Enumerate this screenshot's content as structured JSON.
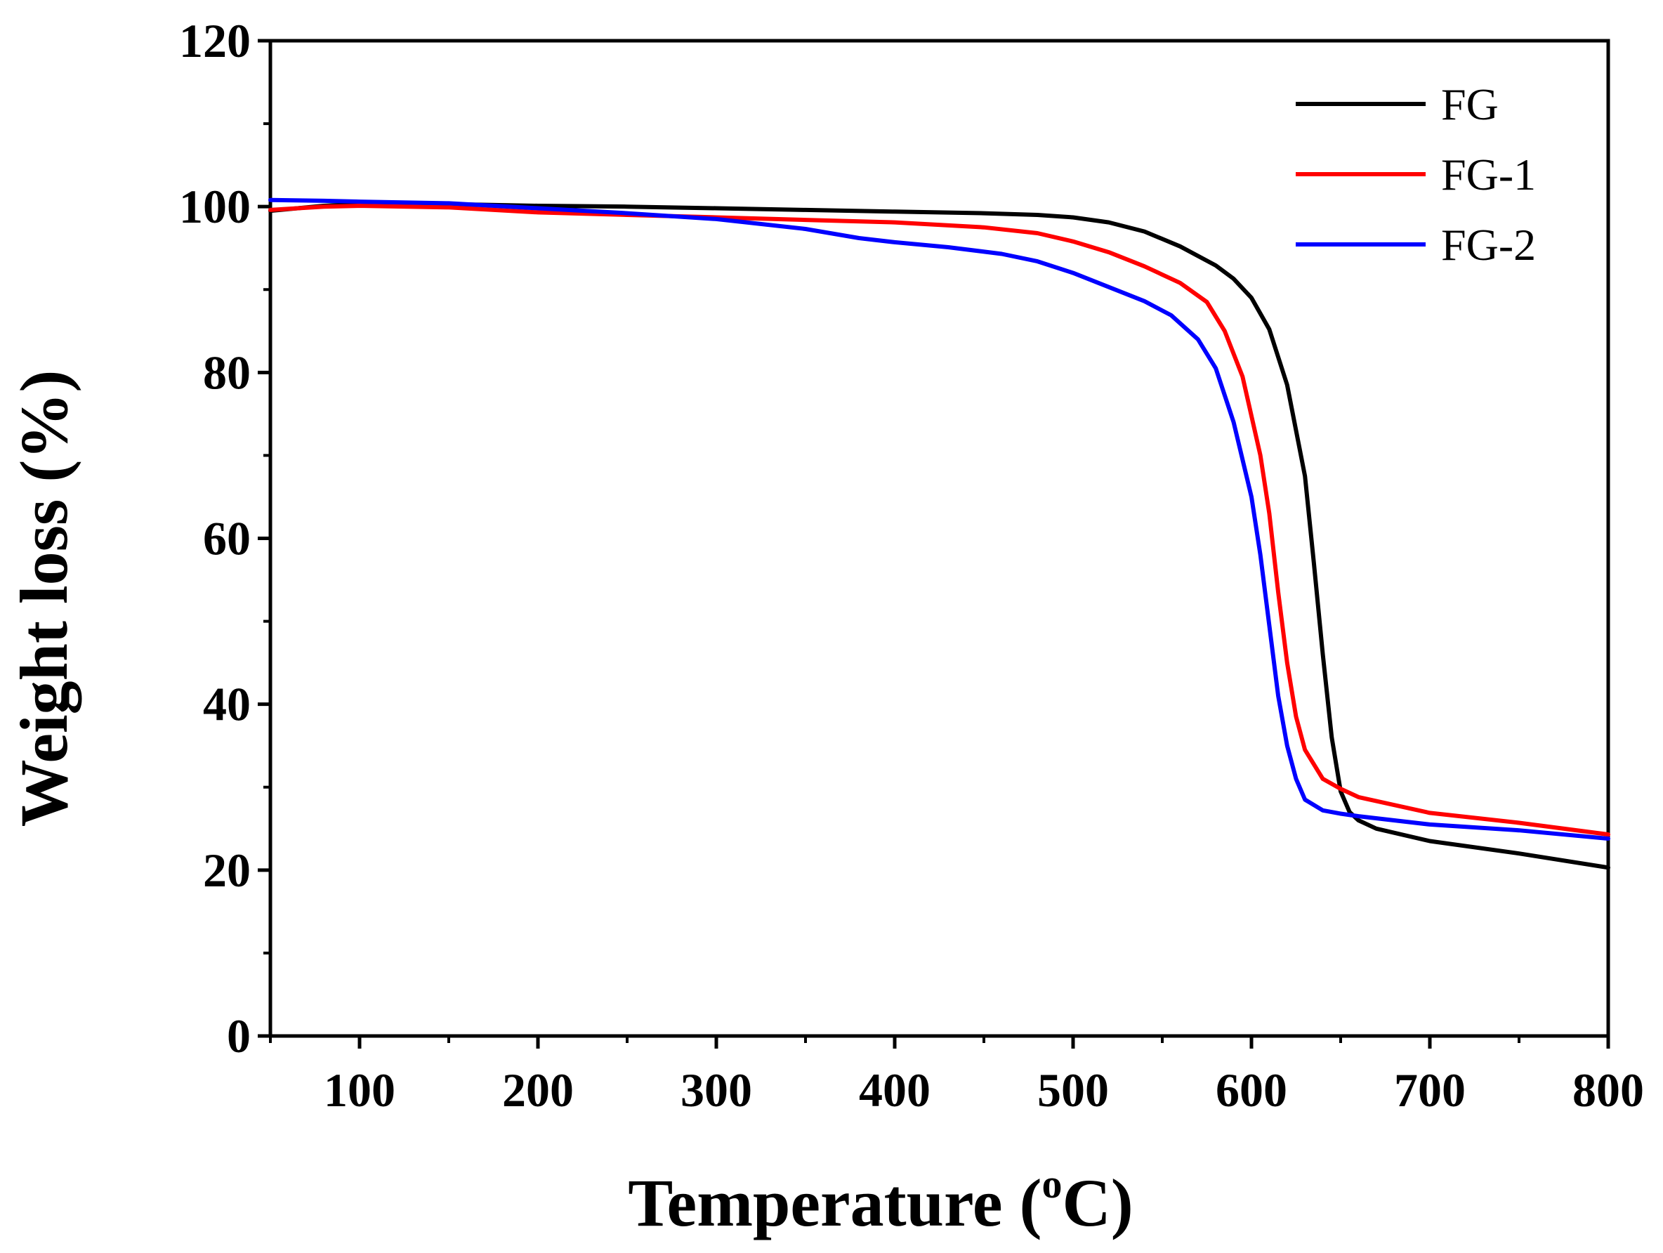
{
  "chart_data": {
    "type": "line",
    "title": "",
    "xlabel": {
      "main": "Temperature (",
      "sup": "o",
      "tail": "C)"
    },
    "ylabel": "Weight loss (%)",
    "xlim": [
      50,
      800
    ],
    "ylim": [
      0,
      120
    ],
    "xticks": [
      100,
      200,
      300,
      400,
      500,
      600,
      700,
      800
    ],
    "yticks": [
      0,
      20,
      40,
      60,
      80,
      100,
      120
    ],
    "xminor": [
      50,
      150,
      250,
      350,
      450,
      550,
      650,
      750
    ],
    "yminor": [
      10,
      30,
      50,
      70,
      90,
      110
    ],
    "legend_position": "top-right",
    "series": [
      {
        "name": "FG",
        "color": "#000000",
        "x": [
          50,
          80,
          100,
          150,
          200,
          250,
          300,
          350,
          400,
          450,
          480,
          500,
          520,
          540,
          560,
          580,
          590,
          600,
          610,
          620,
          630,
          635,
          640,
          645,
          650,
          655,
          660,
          670,
          700,
          750,
          800
        ],
        "y": [
          99.5,
          100.1,
          100.3,
          100.3,
          100.1,
          100.0,
          99.8,
          99.6,
          99.4,
          99.2,
          99.0,
          98.7,
          98.1,
          97.0,
          95.2,
          92.9,
          91.3,
          89.0,
          85.2,
          78.5,
          67.5,
          57.0,
          46.0,
          36.0,
          29.5,
          27.0,
          26.0,
          25.0,
          23.5,
          22.0,
          20.3
        ]
      },
      {
        "name": "FG-1",
        "color": "#ff0000",
        "x": [
          50,
          80,
          100,
          150,
          200,
          250,
          300,
          350,
          400,
          450,
          480,
          500,
          520,
          540,
          560,
          575,
          585,
          595,
          605,
          610,
          615,
          620,
          625,
          630,
          640,
          650,
          660,
          700,
          750,
          800
        ],
        "y": [
          99.6,
          100.0,
          100.1,
          99.9,
          99.3,
          99.0,
          98.7,
          98.4,
          98.1,
          97.5,
          96.8,
          95.8,
          94.5,
          92.8,
          90.8,
          88.5,
          85.0,
          79.5,
          70.0,
          63.0,
          53.5,
          45.0,
          38.5,
          34.5,
          31.0,
          29.8,
          28.8,
          26.9,
          25.7,
          24.3
        ]
      },
      {
        "name": "FG-2",
        "color": "#0000ff",
        "x": [
          50,
          80,
          100,
          150,
          200,
          250,
          300,
          350,
          380,
          400,
          430,
          460,
          480,
          500,
          520,
          540,
          555,
          570,
          580,
          590,
          600,
          605,
          610,
          615,
          620,
          625,
          630,
          640,
          650,
          660,
          700,
          750,
          800
        ],
        "y": [
          100.8,
          100.7,
          100.6,
          100.4,
          99.8,
          99.2,
          98.5,
          97.3,
          96.2,
          95.7,
          95.1,
          94.3,
          93.4,
          92.0,
          90.3,
          88.6,
          86.9,
          84.0,
          80.5,
          74.0,
          65.0,
          58.0,
          49.5,
          41.0,
          35.0,
          31.0,
          28.5,
          27.2,
          26.8,
          26.5,
          25.5,
          24.8,
          23.8
        ]
      }
    ]
  }
}
